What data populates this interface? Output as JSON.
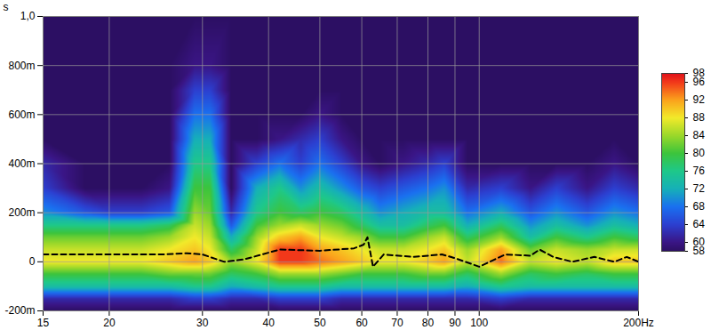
{
  "chart_data": {
    "type": "heatmap",
    "y_label": "s",
    "log": "x",
    "grid": true,
    "xlim": [
      15,
      200
    ],
    "xticks": [
      15,
      20,
      30,
      40,
      50,
      60,
      70,
      80,
      90,
      100,
      {
        "value": 200,
        "label": "200Hz"
      }
    ],
    "ylim": [
      -0.2,
      1.0
    ],
    "yticks": [
      {
        "value": -0.2,
        "label": "-200m"
      },
      0,
      {
        "value": 0.2,
        "label": "200m"
      },
      {
        "value": 0.4,
        "label": "400m"
      },
      {
        "value": 0.6,
        "label": "600m"
      },
      {
        "value": 0.8,
        "label": "800m"
      },
      {
        "value": 1.0,
        "label": "1,0"
      }
    ],
    "x": [
      15,
      18,
      20,
      23,
      26,
      29,
      31,
      34,
      38,
      42,
      46,
      50,
      55,
      60,
      65,
      72,
      80,
      86,
      95,
      110,
      125,
      140,
      160,
      180,
      200
    ],
    "y": [
      -0.2,
      -0.15,
      -0.1,
      -0.05,
      0,
      0.05,
      0.1,
      0.15,
      0.2,
      0.3,
      0.4,
      0.5,
      0.6,
      0.7,
      0.8,
      1.0
    ],
    "values": [
      [
        58,
        58,
        58,
        58,
        58,
        58,
        58,
        58,
        58,
        58,
        58,
        58,
        58,
        58,
        58,
        58,
        58,
        58,
        58,
        58,
        58,
        58,
        58,
        58,
        58
      ],
      [
        62,
        62,
        62,
        62,
        62,
        64,
        64,
        62,
        62,
        64,
        64,
        64,
        62,
        62,
        62,
        62,
        62,
        62,
        62,
        64,
        62,
        62,
        62,
        62,
        62
      ],
      [
        74,
        74,
        74,
        74,
        74,
        76,
        76,
        72,
        74,
        76,
        76,
        76,
        74,
        74,
        74,
        74,
        74,
        74,
        72,
        76,
        74,
        74,
        74,
        74,
        74
      ],
      [
        80,
        80,
        80,
        80,
        82,
        82,
        82,
        78,
        80,
        84,
        84,
        84,
        82,
        80,
        80,
        80,
        82,
        82,
        78,
        84,
        78,
        80,
        78,
        80,
        80
      ],
      [
        88,
        88,
        88,
        88,
        90,
        92,
        90,
        84,
        88,
        96,
        96,
        94,
        92,
        90,
        88,
        88,
        90,
        92,
        86,
        94,
        86,
        88,
        86,
        90,
        90
      ],
      [
        86,
        86,
        86,
        86,
        88,
        90,
        88,
        78,
        86,
        96,
        96,
        92,
        90,
        88,
        86,
        86,
        88,
        90,
        84,
        92,
        82,
        86,
        84,
        86,
        86
      ],
      [
        82,
        82,
        82,
        82,
        84,
        88,
        86,
        72,
        84,
        90,
        92,
        88,
        86,
        84,
        80,
        80,
        84,
        86,
        78,
        84,
        74,
        80,
        76,
        80,
        78
      ],
      [
        76,
        76,
        76,
        76,
        78,
        86,
        84,
        66,
        80,
        84,
        86,
        84,
        82,
        78,
        74,
        74,
        78,
        80,
        72,
        78,
        70,
        74,
        70,
        74,
        72
      ],
      [
        70,
        66,
        64,
        64,
        66,
        84,
        82,
        62,
        76,
        80,
        78,
        80,
        78,
        74,
        70,
        72,
        74,
        74,
        68,
        72,
        66,
        70,
        66,
        70,
        68
      ],
      [
        64,
        58,
        58,
        58,
        60,
        80,
        80,
        58,
        72,
        76,
        70,
        74,
        70,
        66,
        64,
        66,
        68,
        70,
        62,
        64,
        60,
        64,
        60,
        64,
        62
      ],
      [
        62,
        58,
        58,
        58,
        58,
        76,
        76,
        58,
        64,
        68,
        64,
        68,
        64,
        60,
        58,
        60,
        62,
        64,
        58,
        58,
        58,
        58,
        58,
        60,
        58
      ],
      [
        58,
        58,
        58,
        58,
        58,
        72,
        72,
        58,
        58,
        60,
        62,
        64,
        60,
        58,
        58,
        58,
        58,
        58,
        58,
        58,
        58,
        58,
        58,
        58,
        58
      ],
      [
        58,
        58,
        58,
        58,
        58,
        68,
        68,
        58,
        58,
        58,
        58,
        60,
        58,
        58,
        58,
        58,
        58,
        58,
        58,
        58,
        58,
        58,
        58,
        58,
        58
      ],
      [
        58,
        58,
        58,
        58,
        58,
        64,
        64,
        58,
        58,
        58,
        58,
        58,
        58,
        58,
        58,
        58,
        58,
        58,
        58,
        58,
        58,
        58,
        58,
        58,
        58
      ],
      [
        58,
        58,
        58,
        58,
        58,
        60,
        60,
        58,
        58,
        58,
        58,
        58,
        58,
        58,
        58,
        58,
        58,
        58,
        58,
        58,
        58,
        58,
        58,
        58,
        58
      ],
      [
        58,
        58,
        58,
        58,
        58,
        58,
        58,
        58,
        58,
        58,
        58,
        58,
        58,
        58,
        58,
        58,
        58,
        58,
        58,
        58,
        58,
        58,
        58,
        58,
        58
      ]
    ],
    "colorbar": {
      "range": [
        58,
        98
      ],
      "ticks": [
        58,
        60,
        64,
        68,
        72,
        76,
        80,
        84,
        88,
        92,
        96,
        98
      ]
    },
    "series": [
      {
        "type": "line",
        "color": "#000000",
        "line_style": "dashed",
        "x": [
          15,
          20,
          25,
          28,
          30,
          33,
          36,
          42,
          50,
          58,
          60.5,
          61.5,
          63,
          66,
          75,
          85,
          90,
          100,
          112,
          125,
          130,
          138,
          150,
          165,
          180,
          190,
          200
        ],
        "values": [
          0.03,
          0.03,
          0.03,
          0.035,
          0.03,
          0.0,
          0.01,
          0.05,
          0.045,
          0.055,
          0.07,
          0.1,
          -0.02,
          0.03,
          0.02,
          0.03,
          0.015,
          -0.02,
          0.03,
          0.025,
          0.05,
          0.02,
          0.0,
          0.02,
          0.0,
          0.02,
          0.0
        ]
      }
    ]
  }
}
